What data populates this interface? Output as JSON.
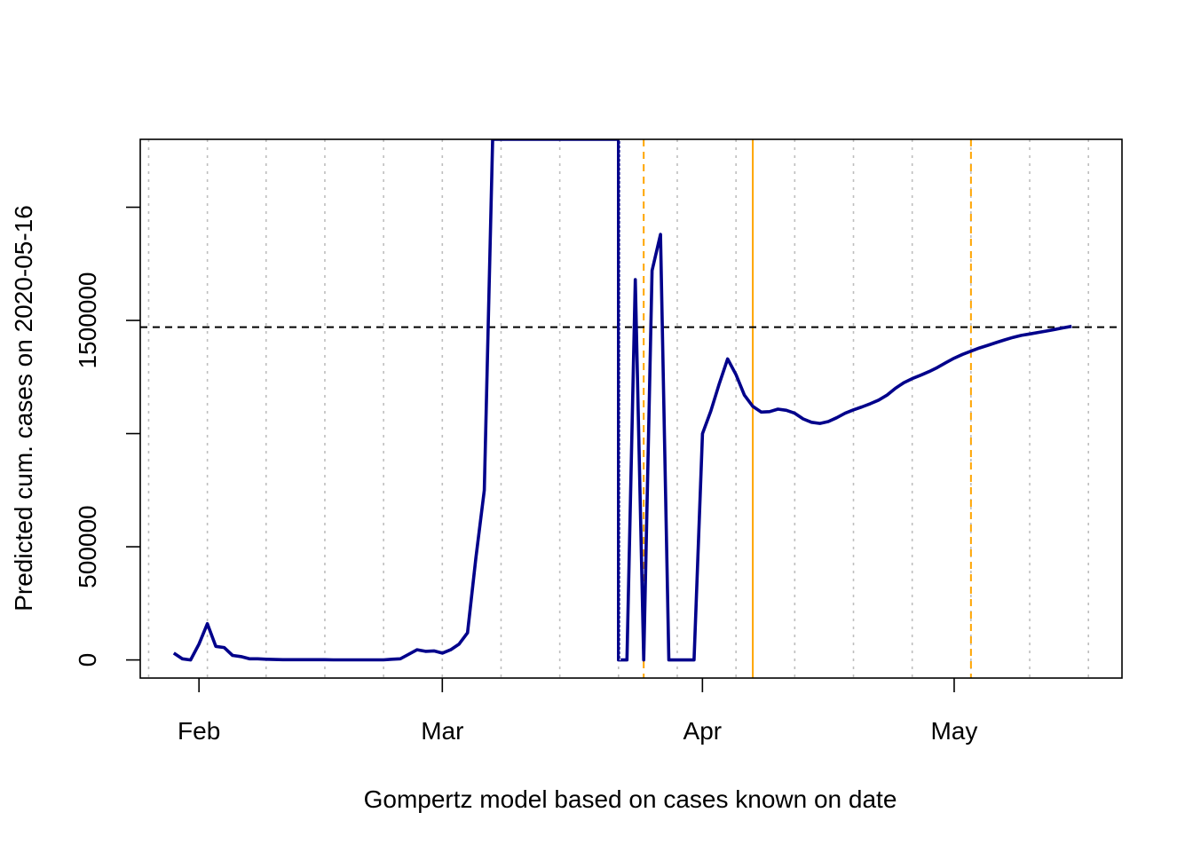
{
  "chart_data": {
    "type": "line",
    "xlabel": "Gompertz model based on cases known on date",
    "ylabel": "Predicted cum. cases on 2020-05-16",
    "xlim": [
      "2020-01-25",
      "2020-05-21"
    ],
    "ylim": [
      -80000,
      2300000
    ],
    "y_ticks": [
      0,
      500000,
      1500000
    ],
    "y_tick_labels": [
      "0",
      "500000",
      "1500000"
    ],
    "y_minor_ticks": [
      1000000,
      2000000
    ],
    "x_ticks": [
      {
        "date": "2020-02-01",
        "label": "Feb"
      },
      {
        "date": "2020-03-01",
        "label": "Mar"
      },
      {
        "date": "2020-04-01",
        "label": "Apr"
      },
      {
        "date": "2020-05-01",
        "label": "May"
      }
    ],
    "x_grid_dates": [
      "2020-01-26",
      "2020-02-02",
      "2020-02-09",
      "2020-02-16",
      "2020-02-23",
      "2020-03-01",
      "2020-03-08",
      "2020-03-15",
      "2020-03-22",
      "2020-03-29",
      "2020-04-05",
      "2020-04-12",
      "2020-04-19",
      "2020-04-26",
      "2020-05-03",
      "2020-05-10",
      "2020-05-17"
    ],
    "grid": true,
    "reference_line": {
      "y": 1470000,
      "style": "dashed",
      "color": "#000000"
    },
    "vertical_markers": [
      {
        "date": "2020-03-25",
        "color": "#FFA500",
        "style": "dashed"
      },
      {
        "date": "2020-04-07",
        "color": "#FFA500",
        "style": "solid"
      },
      {
        "date": "2020-05-03",
        "color": "#FFA500",
        "style": "dashed"
      }
    ],
    "series": [
      {
        "color": "#00008B",
        "points": [
          [
            "2020-01-29",
            30000
          ],
          [
            "2020-01-30",
            5000
          ],
          [
            "2020-01-31",
            0
          ],
          [
            "2020-02-01",
            70000
          ],
          [
            "2020-02-02",
            160000
          ],
          [
            "2020-02-03",
            60000
          ],
          [
            "2020-02-04",
            55000
          ],
          [
            "2020-02-05",
            20000
          ],
          [
            "2020-02-06",
            15000
          ],
          [
            "2020-02-07",
            5000
          ],
          [
            "2020-02-08",
            5000
          ],
          [
            "2020-02-09",
            3000
          ],
          [
            "2020-02-10",
            2000
          ],
          [
            "2020-02-11",
            1000
          ],
          [
            "2020-02-12",
            1000
          ],
          [
            "2020-02-13",
            1000
          ],
          [
            "2020-02-14",
            1000
          ],
          [
            "2020-02-15",
            1000
          ],
          [
            "2020-02-16",
            1000
          ],
          [
            "2020-02-17",
            500
          ],
          [
            "2020-02-18",
            500
          ],
          [
            "2020-02-19",
            500
          ],
          [
            "2020-02-20",
            500
          ],
          [
            "2020-02-21",
            500
          ],
          [
            "2020-02-22",
            500
          ],
          [
            "2020-02-23",
            500
          ],
          [
            "2020-02-24",
            3000
          ],
          [
            "2020-02-25",
            5000
          ],
          [
            "2020-02-26",
            25000
          ],
          [
            "2020-02-27",
            45000
          ],
          [
            "2020-02-28",
            38000
          ],
          [
            "2020-02-29",
            40000
          ],
          [
            "2020-03-01",
            30000
          ],
          [
            "2020-03-02",
            45000
          ],
          [
            "2020-03-03",
            70000
          ],
          [
            "2020-03-04",
            120000
          ],
          [
            "2020-03-05",
            450000
          ],
          [
            "2020-03-06",
            750000
          ],
          [
            "2020-03-07",
            2300000
          ],
          [
            "2020-03-22",
            2300000
          ],
          [
            "2020-03-22",
            0
          ],
          [
            "2020-03-23",
            0
          ],
          [
            "2020-03-24",
            1680000
          ],
          [
            "2020-03-25",
            0
          ],
          [
            "2020-03-26",
            1720000
          ],
          [
            "2020-03-27",
            1880000
          ],
          [
            "2020-03-28",
            0
          ],
          [
            "2020-03-29",
            0
          ],
          [
            "2020-03-30",
            0
          ],
          [
            "2020-03-31",
            0
          ],
          [
            "2020-04-01",
            1000000
          ],
          [
            "2020-04-02",
            1100000
          ],
          [
            "2020-04-03",
            1220000
          ],
          [
            "2020-04-04",
            1330000
          ],
          [
            "2020-04-05",
            1260000
          ],
          [
            "2020-04-06",
            1170000
          ],
          [
            "2020-04-07",
            1120000
          ],
          [
            "2020-04-08",
            1095000
          ],
          [
            "2020-04-09",
            1097000
          ],
          [
            "2020-04-10",
            1108000
          ],
          [
            "2020-04-11",
            1103000
          ],
          [
            "2020-04-12",
            1090000
          ],
          [
            "2020-04-13",
            1065000
          ],
          [
            "2020-04-14",
            1050000
          ],
          [
            "2020-04-15",
            1045000
          ],
          [
            "2020-04-16",
            1053000
          ],
          [
            "2020-04-17",
            1070000
          ],
          [
            "2020-04-18",
            1090000
          ],
          [
            "2020-04-19",
            1105000
          ],
          [
            "2020-04-20",
            1118000
          ],
          [
            "2020-04-21",
            1132000
          ],
          [
            "2020-04-22",
            1148000
          ],
          [
            "2020-04-23",
            1170000
          ],
          [
            "2020-04-24",
            1200000
          ],
          [
            "2020-04-25",
            1225000
          ],
          [
            "2020-04-26",
            1243000
          ],
          [
            "2020-04-27",
            1258000
          ],
          [
            "2020-04-28",
            1274000
          ],
          [
            "2020-04-29",
            1292000
          ],
          [
            "2020-04-30",
            1313000
          ],
          [
            "2020-05-01",
            1333000
          ],
          [
            "2020-05-02",
            1350000
          ],
          [
            "2020-05-03",
            1364000
          ],
          [
            "2020-05-04",
            1378000
          ],
          [
            "2020-05-05",
            1390000
          ],
          [
            "2020-05-06",
            1402000
          ],
          [
            "2020-05-07",
            1414000
          ],
          [
            "2020-05-08",
            1425000
          ],
          [
            "2020-05-09",
            1434000
          ],
          [
            "2020-05-10",
            1440000
          ],
          [
            "2020-05-11",
            1447000
          ],
          [
            "2020-05-12",
            1453000
          ],
          [
            "2020-05-13",
            1460000
          ],
          [
            "2020-05-14",
            1467000
          ],
          [
            "2020-05-15",
            1474000
          ]
        ]
      }
    ],
    "inner_marker": {
      "date": "2020-03-22",
      "color": "#FFFFFF",
      "style": "dotted"
    }
  }
}
